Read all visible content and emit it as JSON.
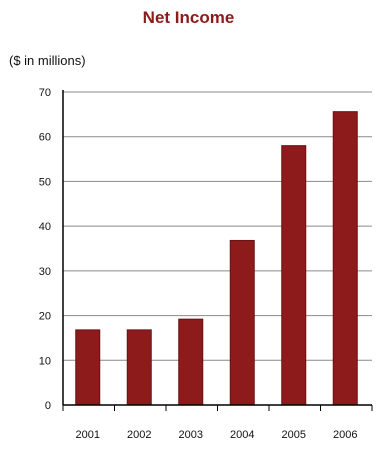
{
  "chart_data": {
    "type": "bar",
    "title": "Net Income",
    "subtitle": "($ in millions)",
    "categories": [
      "2001",
      "2002",
      "2003",
      "2004",
      "2005",
      "2006"
    ],
    "values": [
      16.8,
      16.8,
      19.2,
      36.8,
      58.0,
      65.6
    ],
    "ylim": [
      0,
      70
    ],
    "yticks": [
      0,
      10,
      20,
      30,
      40,
      50,
      60,
      70
    ],
    "grid": true,
    "colors": {
      "bar": "#8e1b1b",
      "bar_edge": "#6a1111",
      "title": "#8e1b1b",
      "grid": "#8a8a8a",
      "axis": "#000000"
    }
  }
}
